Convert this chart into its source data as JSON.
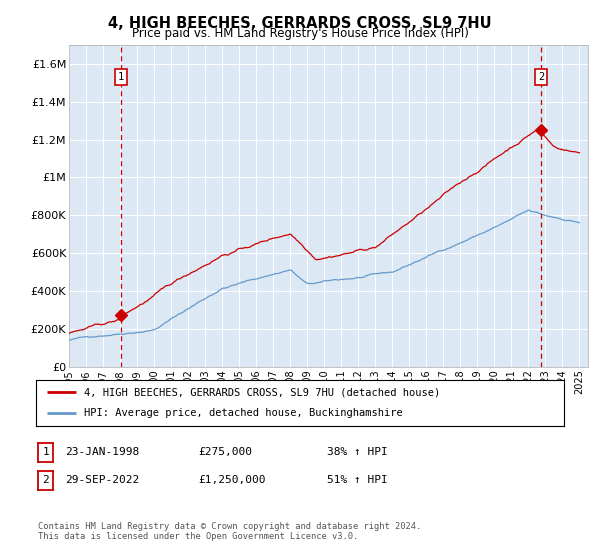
{
  "title": "4, HIGH BEECHES, GERRARDS CROSS, SL9 7HU",
  "subtitle": "Price paid vs. HM Land Registry's House Price Index (HPI)",
  "plot_bg_color": "#dce9f5",
  "hpi_line_color": "#6699cc",
  "price_line_color": "#cc0000",
  "marker1_x": 1998.07,
  "marker2_x": 2022.75,
  "marker1_price": 275000,
  "marker2_price": 1250000,
  "marker1_label": "23-JAN-1998",
  "marker1_price_str": "£275,000",
  "marker1_hpi": "38% ↑ HPI",
  "marker2_label": "29-SEP-2022",
  "marker2_price_str": "£1,250,000",
  "marker2_hpi": "51% ↑ HPI",
  "legend_line1": "4, HIGH BEECHES, GERRARDS CROSS, SL9 7HU (detached house)",
  "legend_line2": "HPI: Average price, detached house, Buckinghamshire",
  "footer": "Contains HM Land Registry data © Crown copyright and database right 2024.\nThis data is licensed under the Open Government Licence v3.0.",
  "ylim": [
    0,
    1700000
  ],
  "yticks": [
    0,
    200000,
    400000,
    600000,
    800000,
    1000000,
    1200000,
    1400000,
    1600000
  ],
  "ytick_labels": [
    "£0",
    "£200K",
    "£400K",
    "£600K",
    "£800K",
    "£1M",
    "£1.2M",
    "£1.4M",
    "£1.6M"
  ],
  "xlim_left": 1995.0,
  "xlim_right": 2025.5,
  "xtick_years": [
    1995,
    1996,
    1997,
    1998,
    1999,
    2000,
    2001,
    2002,
    2003,
    2004,
    2005,
    2006,
    2007,
    2008,
    2009,
    2010,
    2011,
    2012,
    2013,
    2014,
    2015,
    2016,
    2017,
    2018,
    2019,
    2020,
    2021,
    2022,
    2023,
    2024,
    2025
  ]
}
